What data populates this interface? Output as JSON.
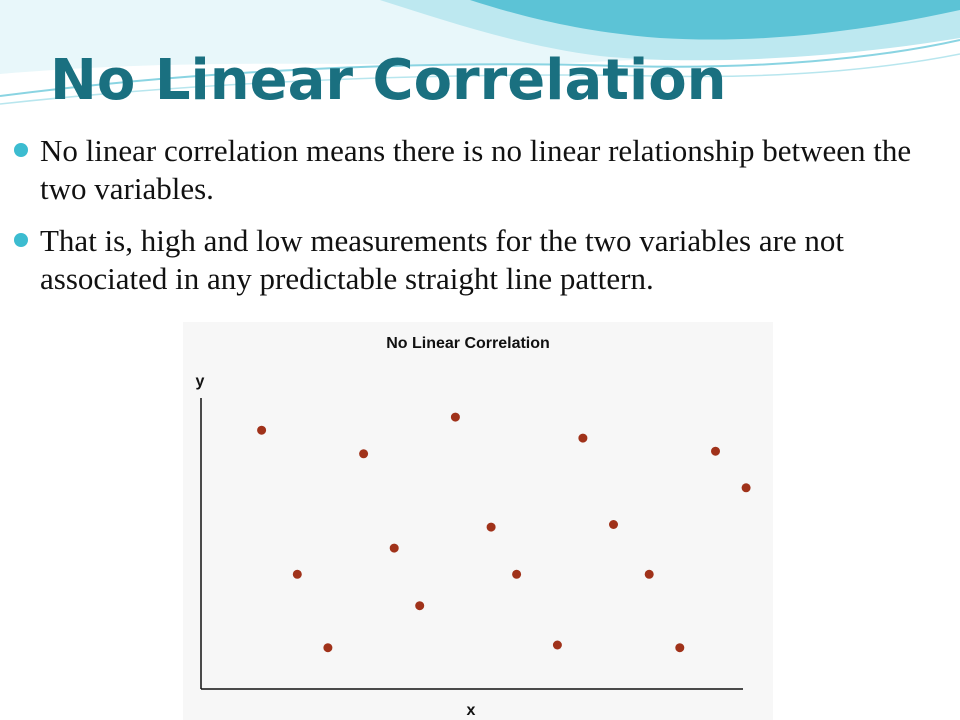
{
  "slide": {
    "title": "No Linear Correlation",
    "bullets": [
      "No linear correlation means there is no linear relationship between the two variables.",
      "That is, high and low measurements for the two variables are not associated in any predictable straight line pattern."
    ]
  },
  "colors": {
    "title": "#1a7080",
    "bullet": "#3cbcd0",
    "point": "#a0321a",
    "chart_background": "#f7f7f7"
  },
  "chart_data": {
    "type": "scatter",
    "title": "No Linear Correlation",
    "xlabel": "x",
    "ylabel": "y",
    "xlim": [
      0,
      10
    ],
    "ylim": [
      0,
      10
    ],
    "grid": false,
    "points": [
      {
        "x": 0.6,
        "y": 9.0
      },
      {
        "x": 1.3,
        "y": 3.5
      },
      {
        "x": 1.9,
        "y": 0.7
      },
      {
        "x": 2.6,
        "y": 8.1
      },
      {
        "x": 3.2,
        "y": 4.5
      },
      {
        "x": 3.7,
        "y": 2.3
      },
      {
        "x": 4.4,
        "y": 9.5
      },
      {
        "x": 5.1,
        "y": 5.3
      },
      {
        "x": 5.6,
        "y": 3.5
      },
      {
        "x": 6.4,
        "y": 0.8
      },
      {
        "x": 6.9,
        "y": 8.7
      },
      {
        "x": 7.5,
        "y": 5.4
      },
      {
        "x": 8.2,
        "y": 3.5
      },
      {
        "x": 8.8,
        "y": 0.7
      },
      {
        "x": 9.5,
        "y": 8.2
      },
      {
        "x": 10.1,
        "y": 6.8
      }
    ]
  }
}
